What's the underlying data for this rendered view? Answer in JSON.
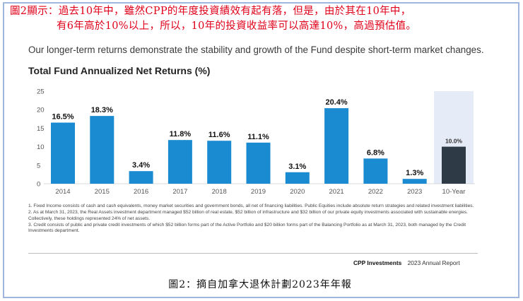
{
  "annotation": {
    "line1": "圖2顯示：過去10年中，雖然CPP的年度投資績效有起有落，但是，由於其在10年中，",
    "line2": "有6年高於10%以上，所以，10年的投資收益率可以高達10%，高過預估值。"
  },
  "subtitle": "Our longer-term returns demonstrate the stability and growth of the Fund despite short-term market changes.",
  "chart_data": {
    "type": "bar",
    "title": "Total Fund Annualized Net Returns (%)",
    "categories": [
      "2014",
      "2015",
      "2016",
      "2017",
      "2018",
      "2019",
      "2020",
      "2021",
      "2022",
      "2023",
      "10-Year"
    ],
    "values": [
      16.5,
      18.3,
      3.4,
      11.8,
      11.6,
      11.1,
      3.1,
      20.4,
      6.8,
      1.3,
      10.0
    ],
    "data_labels": [
      "16.5%",
      "18.3%",
      "3.4%",
      "11.8%",
      "11.6%",
      "11.1%",
      "3.1%",
      "20.4%",
      "6.8%",
      "1.3%",
      "10.0%"
    ],
    "ylim": [
      0,
      25
    ],
    "yticks": [
      "0",
      "5",
      "10",
      "15",
      "20",
      "25"
    ],
    "grid": false,
    "colors": {
      "annual": "#1a8ad1",
      "ten_year": "#2e3a45",
      "highlight_band": "#e6ecf7"
    }
  },
  "footnotes": [
    "1. Fixed Income consists of cash and cash equivalents, money market securities and government bonds, all net of financing liabilities. Public Equities include absolute return strategies and related investment liabilities.",
    "2. As at March 31, 2023, the Real Assets investment department managed $52 billion of real estate, $52 billion of infrastructure and $32 billion of our private equity investments associated with sustainable energies. Collectively, these holdings represented 24% of net assets.",
    "3. Credit consists of public and private credit investments of which $52 billion forms part of the Active Portfolio and $20 billion forms part of the Balancing Portfolio as at March 31, 2023, both managed by the Credit Investments department."
  ],
  "publisher": {
    "brand": "CPP Investments",
    "report": "2023 Annual Report"
  },
  "caption": "圖2：摘自加拿大退休計劃2023年年報"
}
